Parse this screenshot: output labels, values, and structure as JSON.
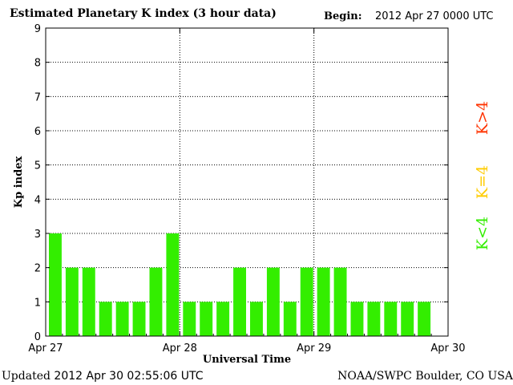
{
  "header": {
    "title": "Estimated Planetary K index (3 hour data)",
    "begin_label": "Begin:",
    "begin_value": "2012 Apr 27 0000 UTC"
  },
  "footer": {
    "updated_label": "Updated",
    "updated_value": "2012 Apr 30 02:55:06 UTC",
    "source": "NOAA/SWPC Boulder, CO USA"
  },
  "legend": [
    {
      "label": "K>4",
      "color": "#ff3300"
    },
    {
      "label": "K=4",
      "color": "#ffcc00"
    },
    {
      "label": "K<4",
      "color": "#33ee00"
    }
  ],
  "chart_data": {
    "type": "bar",
    "title": "Estimated Planetary K index (3 hour data)",
    "xlabel": "Universal Time",
    "ylabel": "Kp index",
    "ylim": [
      0,
      9
    ],
    "yticks": [
      0,
      1,
      2,
      3,
      4,
      5,
      6,
      7,
      8,
      9
    ],
    "xtick_labels": [
      "Apr 27",
      "Apr 28",
      "Apr 29",
      "Apr 30"
    ],
    "bar_color": "#33ee00",
    "grid": "dotted",
    "series": [
      {
        "values": [
          3,
          2,
          2,
          1,
          1,
          1,
          2,
          3,
          1,
          1,
          1,
          2,
          1,
          2,
          1,
          2,
          2,
          2,
          1,
          1,
          1,
          1,
          1
        ]
      }
    ]
  }
}
